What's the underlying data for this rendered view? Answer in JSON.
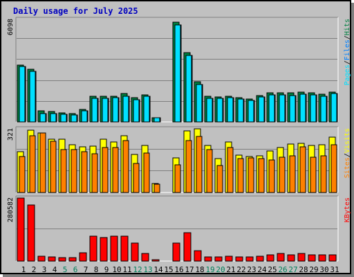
{
  "chart_data": {
    "type": "bar",
    "title": "Daily usage for July 2025",
    "categories": [
      "1",
      "2",
      "3",
      "4",
      "5",
      "6",
      "7",
      "8",
      "9",
      "10",
      "11",
      "12",
      "13",
      "14",
      "15",
      "16",
      "17",
      "18",
      "19",
      "20",
      "21",
      "22",
      "23",
      "24",
      "25",
      "26",
      "27",
      "28",
      "29",
      "30",
      "31"
    ],
    "weekend_days": [
      "5",
      "6",
      "12",
      "13",
      "19",
      "20",
      "26",
      "27"
    ],
    "panels": [
      {
        "id": "hits",
        "max_label": "6098",
        "ylim": [
          0,
          6098
        ],
        "side_labels": [
          "Pages",
          "/",
          "Files",
          "/",
          "Hits"
        ],
        "side_colors": [
          "#00e0ff",
          "#000000",
          "#0080ff",
          "#000000",
          "#008040"
        ],
        "series": [
          {
            "name": "Hits",
            "color": "#008040",
            "values": [
              3430,
              3170,
              650,
              630,
              530,
              490,
              760,
              1560,
              1560,
              1560,
              1720,
              1440,
              1640,
              270,
              0,
              5990,
              4180,
              2420,
              1520,
              1500,
              1560,
              1470,
              1390,
              1600,
              1760,
              1760,
              1760,
              1790,
              1760,
              1660,
              1780
            ]
          },
          {
            "name": "Files",
            "color": "#0080ff",
            "values": [
              3350,
              3050,
              520,
              520,
              450,
              430,
              660,
              1420,
              1410,
              1450,
              1560,
              1340,
              1520,
              260,
              0,
              5840,
              3990,
              2230,
              1410,
              1400,
              1450,
              1370,
              1300,
              1490,
              1620,
              1630,
              1600,
              1660,
              1610,
              1560,
              1710
            ]
          },
          {
            "name": "Pages",
            "color": "#00e0ff",
            "values": [
              3350,
              3050,
              520,
              520,
              450,
              430,
              660,
              1420,
              1410,
              1450,
              1560,
              1340,
              1520,
              260,
              0,
              5840,
              3990,
              2230,
              1410,
              1400,
              1450,
              1370,
              1300,
              1490,
              1620,
              1630,
              1600,
              1660,
              1610,
              1560,
              1710
            ]
          }
        ]
      },
      {
        "id": "visits",
        "max_label": "321",
        "ylim": [
          0,
          321
        ],
        "side_labels": [
          "Sites",
          "/",
          "Visits"
        ],
        "side_colors": [
          "#ff8000",
          "#000000",
          "#ffff00"
        ],
        "series": [
          {
            "name": "Visits",
            "color": "#ffff00",
            "values": [
              207,
              314,
              300,
              267,
              267,
              239,
              231,
              233,
              267,
              256,
              286,
              193,
              237,
              44,
              0,
              174,
              311,
              321,
              236,
              170,
              256,
              187,
              182,
              186,
              210,
              227,
              244,
              248,
              237,
              239,
              279
            ]
          },
          {
            "name": "Sites",
            "color": "#ff8000",
            "values": [
              180,
              286,
              300,
              257,
              215,
              215,
              204,
              195,
              225,
              226,
              261,
              148,
              200,
              43,
              0,
              140,
              260,
              283,
              216,
              136,
              226,
              170,
              173,
              169,
              164,
              176,
              185,
              230,
              177,
              183,
              241
            ]
          }
        ]
      },
      {
        "id": "kbytes",
        "max_label": "280582",
        "ylim": [
          0,
          280582
        ],
        "side_labels": [
          "KBytes"
        ],
        "side_colors": [
          "#ff0000"
        ],
        "series": [
          {
            "name": "KBytes",
            "color": "#ff0000",
            "values": [
              280582,
              249000,
              22000,
              17000,
              16000,
              16000,
              38000,
              112000,
              105000,
              110000,
              111000,
              80000,
              34000,
              6000,
              0,
              81000,
              125000,
              47000,
              18000,
              18000,
              23000,
              20000,
              19000,
              21000,
              28000,
              33000,
              29000,
              35000,
              28000,
              27000,
              29000
            ]
          }
        ]
      }
    ]
  }
}
